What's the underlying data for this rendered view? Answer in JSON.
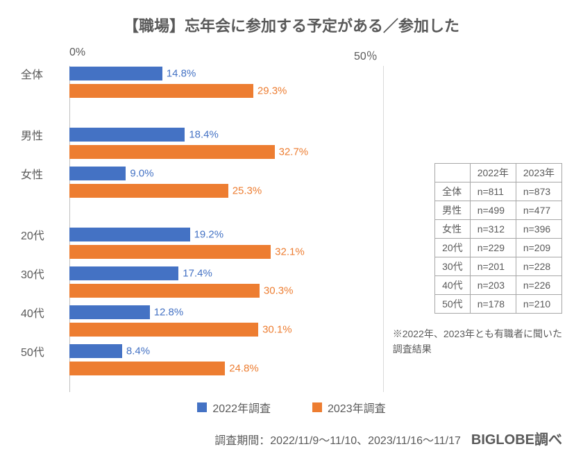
{
  "title": "【職場】忘年会に参加する予定がある／参加した",
  "axis": {
    "zero": "0%",
    "fifty": "50％",
    "max": 50
  },
  "colors": {
    "2022": "#4472c4",
    "2023": "#ed7d31",
    "text": "#595959",
    "grid": "#d9d9d9"
  },
  "groups": [
    {
      "rows": [
        {
          "label": "全体",
          "v2022": 14.8,
          "v2023": 29.3
        }
      ]
    },
    {
      "rows": [
        {
          "label": "男性",
          "v2022": 18.4,
          "v2023": 32.7
        },
        {
          "label": "女性",
          "v2022": 9.0,
          "v2023": 25.3
        }
      ]
    },
    {
      "rows": [
        {
          "label": "20代",
          "v2022": 19.2,
          "v2023": 32.1
        },
        {
          "label": "30代",
          "v2022": 17.4,
          "v2023": 30.3
        },
        {
          "label": "40代",
          "v2022": 12.8,
          "v2023": 30.1
        },
        {
          "label": "50代",
          "v2022": 8.4,
          "v2023": 24.8
        }
      ]
    }
  ],
  "legend": {
    "y2022": "2022年調査",
    "y2023": "2023年調査"
  },
  "table": {
    "headers": [
      "",
      "2022年",
      "2023年"
    ],
    "rows": [
      [
        "全体",
        "n=811",
        "n=873"
      ],
      [
        "男性",
        "n=499",
        "n=477"
      ],
      [
        "女性",
        "n=312",
        "n=396"
      ],
      [
        "20代",
        "n=229",
        "n=209"
      ],
      [
        "30代",
        "n=201",
        "n=228"
      ],
      [
        "40代",
        "n=203",
        "n=226"
      ],
      [
        "50代",
        "n=178",
        "n=210"
      ]
    ],
    "note_line1": "※2022年、2023年とも有職者に聞いた",
    "note_line2": "調査結果"
  },
  "footer": {
    "period": "調査期間：2022/11/9～11/10、2023/11/16～11/17",
    "credit": "BIGLOBE調べ"
  },
  "bar_pixel_scale": 9.04
}
